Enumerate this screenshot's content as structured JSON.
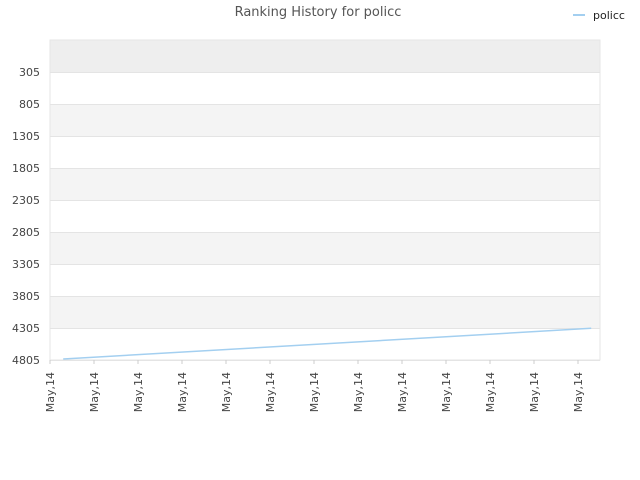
{
  "chart_data": {
    "type": "line",
    "title": "Ranking History for policc",
    "xlabel": "",
    "ylabel": "",
    "y_inverted": true,
    "ylim": [
      -195,
      4805
    ],
    "y_ticks": [
      305,
      805,
      1305,
      1805,
      2305,
      2805,
      3305,
      3805,
      4305,
      4805
    ],
    "x_ticks": [
      "May,14",
      "May,14",
      "May,14",
      "May,14",
      "May,14",
      "May,14",
      "May,14",
      "May,14",
      "May,14",
      "May,14",
      "May,14",
      "May,14",
      "May,14"
    ],
    "x_range": [
      0,
      12.5
    ],
    "grid": true,
    "legend_position": "top-right",
    "series": [
      {
        "name": "policc",
        "color": "#a3cff0",
        "x": [
          0.3,
          12.3
        ],
        "values": [
          4790,
          4310
        ]
      }
    ]
  },
  "band_colors": [
    "#eeeeee",
    "#ffffff",
    "#f4f4f4"
  ]
}
